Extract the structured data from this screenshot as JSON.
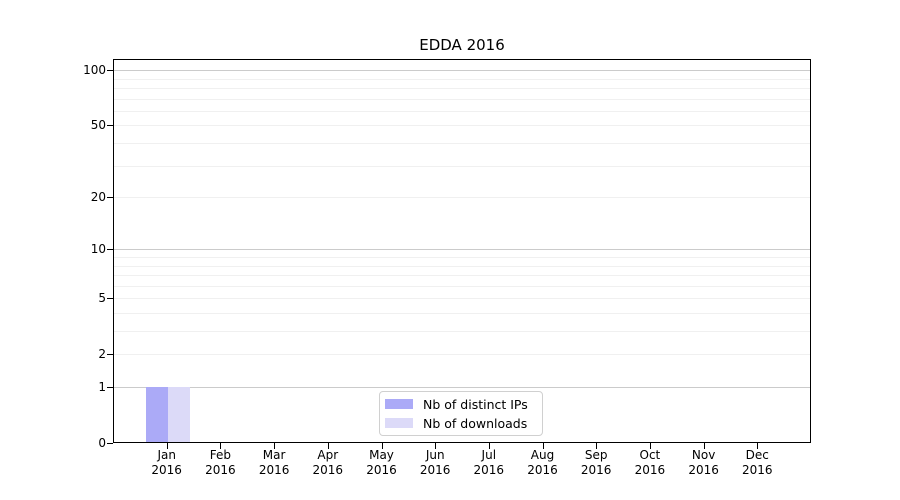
{
  "chart_data": {
    "type": "bar",
    "title": "EDDA 2016",
    "x": {
      "months": [
        "Jan",
        "Feb",
        "Mar",
        "Apr",
        "May",
        "Jun",
        "Jul",
        "Aug",
        "Sep",
        "Oct",
        "Nov",
        "Dec"
      ],
      "year": "2016"
    },
    "series": [
      {
        "name": "Nb of distinct IPs",
        "color": "#abaaf7",
        "values": [
          1,
          0,
          0,
          0,
          0,
          0,
          0,
          0,
          0,
          0,
          0,
          0
        ]
      },
      {
        "name": "Nb of downloads",
        "color": "#dcdaf8",
        "values": [
          1,
          0,
          0,
          0,
          0,
          0,
          0,
          0,
          0,
          0,
          0,
          0
        ]
      }
    ],
    "yscale": "log1p",
    "ylim": [
      0,
      115
    ],
    "y_tick_labels": [
      0,
      1,
      2,
      5,
      10,
      20,
      50,
      100
    ],
    "grid_major_values": [
      1,
      10,
      100
    ],
    "grid_minor_values": [
      2,
      3,
      4,
      5,
      6,
      7,
      8,
      9,
      20,
      30,
      40,
      50,
      60,
      70,
      80,
      90
    ],
    "grid": true,
    "legend_position": "lower center"
  },
  "colors": {
    "axis": "#000000",
    "grid_major": "#cbcbcb",
    "grid_minor": "#f0f0f0",
    "legend_border": "#d0d0d0",
    "bar_distinct_ips": "#abaaf7",
    "bar_downloads": "#dcdaf8"
  }
}
